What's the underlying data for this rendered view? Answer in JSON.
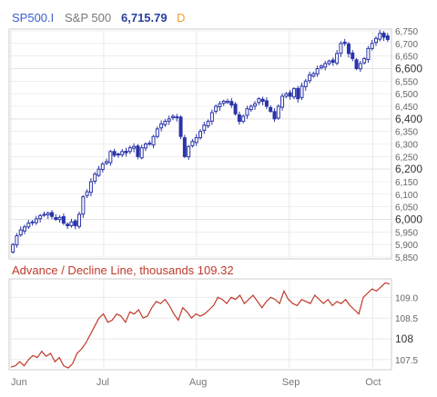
{
  "header": {
    "symbol": "SP500.I",
    "name": "S&P 500",
    "last": "6,715.79",
    "interval": "D"
  },
  "colors": {
    "symbol": "#3a5fcd",
    "name": "#777777",
    "last": "#2a3fa0",
    "interval": "#f0a030",
    "candle": "#2b35a8",
    "adline": "#c0392b",
    "adtitle": "#c0392b",
    "grid": "#e3e3e3",
    "frame": "#cccccc"
  },
  "chart_data": [
    {
      "type": "candlestick",
      "title": "",
      "x_labels": [
        "Jun",
        "Jul",
        "Aug",
        "Sep",
        "Oct"
      ],
      "ylim": [
        5850,
        6750
      ],
      "y_ticks": [
        5850,
        5900,
        5950,
        6000,
        6050,
        6100,
        6150,
        6200,
        6250,
        6300,
        6350,
        6400,
        6450,
        6500,
        6550,
        6600,
        6650,
        6700,
        6750
      ],
      "y_tick_labels": [
        "5,850",
        "5,900",
        "5,950",
        "6,000",
        "6,050",
        "6,100",
        "6,150",
        "6,200",
        "6,250",
        "6,300",
        "6,350",
        "6,400",
        "6,450",
        "6,500",
        "6,550",
        "6,600",
        "6,650",
        "6,700",
        "6,750"
      ],
      "y_bold_ticks": [
        6000,
        6200,
        6400,
        6600
      ],
      "close": [
        5900,
        5935,
        5958,
        5970,
        5985,
        5990,
        6002,
        6015,
        6020,
        6025,
        6012,
        6000,
        6008,
        5985,
        5975,
        5990,
        5975,
        6020,
        6090,
        6110,
        6150,
        6180,
        6200,
        6220,
        6230,
        6270,
        6255,
        6260,
        6270,
        6265,
        6285,
        6290,
        6250,
        6285,
        6300,
        6300,
        6330,
        6360,
        6380,
        6390,
        6400,
        6410,
        6405,
        6330,
        6250,
        6290,
        6310,
        6325,
        6350,
        6375,
        6390,
        6425,
        6450,
        6460,
        6470,
        6470,
        6455,
        6420,
        6390,
        6410,
        6440,
        6450,
        6460,
        6480,
        6470,
        6450,
        6430,
        6400,
        6450,
        6490,
        6500,
        6490,
        6520,
        6480,
        6530,
        6550,
        6575,
        6580,
        6600,
        6610,
        6620,
        6630,
        6625,
        6660,
        6700,
        6700,
        6660,
        6640,
        6600,
        6620,
        6640,
        6680,
        6700,
        6720,
        6740,
        6725,
        6716
      ]
    },
    {
      "type": "line",
      "title": "Advance / Decline Line, thousands",
      "last_value": "109.32",
      "x_labels": [
        "Jun",
        "Jul",
        "Aug",
        "Sep",
        "Oct"
      ],
      "ylim": [
        107.3,
        109.4
      ],
      "y_ticks": [
        107.5,
        108,
        108.5,
        109
      ],
      "y_tick_labels": [
        "107.5",
        "108",
        "108.5",
        "109.0"
      ],
      "y_bold_ticks": [
        108
      ],
      "values": [
        107.32,
        107.35,
        107.45,
        107.35,
        107.5,
        107.6,
        107.55,
        107.7,
        107.58,
        107.65,
        107.45,
        107.55,
        107.35,
        107.3,
        107.4,
        107.65,
        107.75,
        107.9,
        108.1,
        108.3,
        108.5,
        108.6,
        108.4,
        108.45,
        108.6,
        108.55,
        108.4,
        108.65,
        108.6,
        108.7,
        108.5,
        108.55,
        108.75,
        108.9,
        108.85,
        108.95,
        108.8,
        108.6,
        108.45,
        108.75,
        108.65,
        108.5,
        108.6,
        108.55,
        108.6,
        108.7,
        108.8,
        109.0,
        108.95,
        108.85,
        109.0,
        108.95,
        109.05,
        108.85,
        108.95,
        109.05,
        108.9,
        108.75,
        108.9,
        109.0,
        108.95,
        108.85,
        109.15,
        108.95,
        108.85,
        108.8,
        108.95,
        108.9,
        108.85,
        109.05,
        108.95,
        108.85,
        108.95,
        108.8,
        108.9,
        108.85,
        108.95,
        108.8,
        108.7,
        108.6,
        109.0,
        109.1,
        109.2,
        109.15,
        109.25,
        109.35,
        109.32
      ]
    }
  ]
}
